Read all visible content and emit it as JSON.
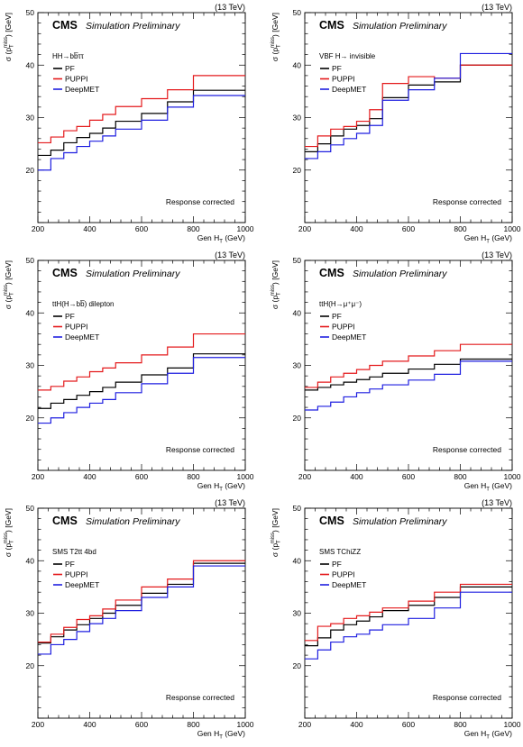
{
  "chart_data": [
    {
      "type": "line",
      "step": true,
      "energy_label": "(13 TeV)",
      "experiment": "CMS",
      "status": "Simulation Preliminary",
      "process": "HH→bb̅ττ",
      "annotation": "Response corrected",
      "xlabel": "Gen H",
      "xlabel_sub": "T",
      "xlabel_unit": "(GeV)",
      "ylabel": "σ (p",
      "ylabel_sub": "T",
      "ylabel_sup": "miss",
      "ylabel_unit": ") [GeV]",
      "xlim": [
        200,
        1000
      ],
      "ylim": [
        10,
        50
      ],
      "x_ticks": [
        200,
        400,
        600,
        800,
        1000
      ],
      "y_ticks": [
        20,
        30,
        40,
        50
      ],
      "grid": false,
      "legend_position": "top-left",
      "bin_edges": [
        200,
        250,
        300,
        350,
        400,
        450,
        500,
        600,
        700,
        800,
        1000
      ],
      "series": [
        {
          "name": "PF",
          "values": [
            22.8,
            23.8,
            25.2,
            26.2,
            27.0,
            28.0,
            29.3,
            30.8,
            33.0,
            35.2
          ]
        },
        {
          "name": "PUPPI",
          "values": [
            25.2,
            26.3,
            27.5,
            28.3,
            29.5,
            30.6,
            32.1,
            33.6,
            35.3,
            38.0
          ]
        },
        {
          "name": "DeepMET",
          "values": [
            20.0,
            22.2,
            23.3,
            24.5,
            25.5,
            26.5,
            27.8,
            29.5,
            32.0,
            34.2
          ]
        }
      ]
    },
    {
      "type": "line",
      "step": true,
      "energy_label": "(13 TeV)",
      "experiment": "CMS",
      "status": "Simulation Preliminary",
      "process": "VBF H→ invisible",
      "annotation": "Response corrected",
      "xlabel": "Gen H",
      "xlabel_sub": "T",
      "xlabel_unit": "(GeV)",
      "ylabel": "σ (p",
      "ylabel_sub": "T",
      "ylabel_sup": "miss",
      "ylabel_unit": ") [GeV]",
      "xlim": [
        200,
        1000
      ],
      "ylim": [
        10,
        50
      ],
      "x_ticks": [
        200,
        400,
        600,
        800,
        1000
      ],
      "y_ticks": [
        20,
        30,
        40,
        50
      ],
      "grid": false,
      "legend_position": "top-left",
      "bin_edges": [
        200,
        250,
        300,
        350,
        400,
        450,
        500,
        600,
        700,
        800,
        1000
      ],
      "series": [
        {
          "name": "PF",
          "values": [
            23.5,
            25.0,
            26.5,
            27.8,
            28.5,
            29.8,
            33.8,
            36.2,
            36.8,
            40.0
          ]
        },
        {
          "name": "PUPPI",
          "values": [
            24.5,
            26.5,
            27.8,
            28.3,
            29.3,
            31.5,
            36.5,
            37.8,
            37.5,
            40.0
          ]
        },
        {
          "name": "DeepMET",
          "values": [
            22.2,
            23.5,
            24.8,
            26.0,
            27.0,
            28.5,
            33.3,
            35.3,
            37.5,
            42.2
          ]
        }
      ]
    },
    {
      "type": "line",
      "step": true,
      "energy_label": "(13 TeV)",
      "experiment": "CMS",
      "status": "Simulation Preliminary",
      "process": "ttH(H→bb̅) dilepton",
      "annotation": "Response corrected",
      "xlabel": "Gen H",
      "xlabel_sub": "T",
      "xlabel_unit": "(GeV)",
      "ylabel": "σ (p",
      "ylabel_sub": "T",
      "ylabel_sup": "miss",
      "ylabel_unit": ") [GeV]",
      "xlim": [
        200,
        1000
      ],
      "ylim": [
        10,
        50
      ],
      "x_ticks": [
        200,
        400,
        600,
        800,
        1000
      ],
      "y_ticks": [
        20,
        30,
        40,
        50
      ],
      "grid": false,
      "legend_position": "top-left",
      "bin_edges": [
        200,
        250,
        300,
        350,
        400,
        450,
        500,
        600,
        700,
        800,
        1000
      ],
      "series": [
        {
          "name": "PF",
          "values": [
            21.8,
            22.8,
            23.5,
            24.3,
            25.0,
            25.8,
            26.8,
            28.2,
            29.5,
            32.2
          ]
        },
        {
          "name": "PUPPI",
          "values": [
            25.3,
            26.0,
            27.0,
            27.8,
            28.8,
            29.5,
            30.5,
            32.0,
            33.5,
            36.0
          ]
        },
        {
          "name": "DeepMET",
          "values": [
            19.0,
            20.0,
            21.0,
            22.0,
            22.8,
            23.5,
            24.8,
            26.5,
            28.5,
            31.5
          ]
        }
      ]
    },
    {
      "type": "line",
      "step": true,
      "energy_label": "(13 TeV)",
      "experiment": "CMS",
      "status": "Simulation Preliminary",
      "process": "ttH(H→μ⁺μ⁻)",
      "annotation": "Response corrected",
      "xlabel": "Gen H",
      "xlabel_sub": "T",
      "xlabel_unit": "(GeV)",
      "ylabel": "σ (p",
      "ylabel_sub": "T",
      "ylabel_sup": "miss",
      "ylabel_unit": ") [GeV]",
      "xlim": [
        200,
        1000
      ],
      "ylim": [
        10,
        50
      ],
      "x_ticks": [
        200,
        400,
        600,
        800,
        1000
      ],
      "y_ticks": [
        20,
        30,
        40,
        50
      ],
      "grid": false,
      "legend_position": "top-left",
      "bin_edges": [
        200,
        250,
        300,
        350,
        400,
        450,
        500,
        600,
        700,
        800,
        1000
      ],
      "series": [
        {
          "name": "PF",
          "values": [
            25.3,
            25.8,
            26.3,
            26.8,
            27.3,
            27.8,
            28.5,
            29.3,
            30.2,
            31.2
          ]
        },
        {
          "name": "PUPPI",
          "values": [
            25.8,
            26.8,
            27.8,
            28.5,
            29.2,
            30.0,
            30.8,
            31.8,
            32.8,
            34.0
          ]
        },
        {
          "name": "DeepMET",
          "values": [
            21.5,
            22.2,
            23.0,
            24.0,
            24.8,
            25.5,
            26.3,
            27.2,
            28.3,
            30.8
          ]
        }
      ]
    },
    {
      "type": "line",
      "step": true,
      "energy_label": "(13 TeV)",
      "experiment": "CMS",
      "status": "Simulation Preliminary",
      "process": "SMS T2tt 4bd",
      "annotation": "Response corrected",
      "xlabel": "Gen H",
      "xlabel_sub": "T",
      "xlabel_unit": "(GeV)",
      "ylabel": "σ (p",
      "ylabel_sub": "T",
      "ylabel_sup": "miss",
      "ylabel_unit": ") [GeV]",
      "xlim": [
        200,
        1000
      ],
      "ylim": [
        10,
        50
      ],
      "x_ticks": [
        200,
        400,
        600,
        800,
        1000
      ],
      "y_ticks": [
        20,
        30,
        40,
        50
      ],
      "grid": false,
      "legend_position": "top-left",
      "bin_edges": [
        200,
        250,
        300,
        350,
        400,
        450,
        500,
        600,
        700,
        800,
        1000
      ],
      "series": [
        {
          "name": "PF",
          "values": [
            24.3,
            25.5,
            26.8,
            27.8,
            29.0,
            30.0,
            31.5,
            33.8,
            35.5,
            39.5
          ]
        },
        {
          "name": "PUPPI",
          "values": [
            24.5,
            26.0,
            27.3,
            28.8,
            29.5,
            30.8,
            32.5,
            35.0,
            36.5,
            40.0
          ]
        },
        {
          "name": "DeepMET",
          "values": [
            22.2,
            24.0,
            25.0,
            26.5,
            28.0,
            29.0,
            30.5,
            33.0,
            35.0,
            39.0
          ]
        }
      ]
    },
    {
      "type": "line",
      "step": true,
      "energy_label": "(13 TeV)",
      "experiment": "CMS",
      "status": "Simulation Preliminary",
      "process": "SMS TChiZZ",
      "annotation": "Response corrected",
      "xlabel": "Gen H",
      "xlabel_sub": "T",
      "xlabel_unit": "(GeV)",
      "ylabel": "σ (p",
      "ylabel_sub": "T",
      "ylabel_sup": "miss",
      "ylabel_unit": ") [GeV]",
      "xlim": [
        200,
        1000
      ],
      "ylim": [
        10,
        50
      ],
      "x_ticks": [
        200,
        400,
        600,
        800,
        1000
      ],
      "y_ticks": [
        20,
        30,
        40,
        50
      ],
      "grid": false,
      "legend_position": "top-left",
      "bin_edges": [
        200,
        250,
        300,
        350,
        400,
        450,
        500,
        600,
        700,
        800,
        1000
      ],
      "series": [
        {
          "name": "PF",
          "values": [
            23.8,
            25.3,
            26.8,
            27.8,
            28.5,
            29.3,
            30.5,
            31.5,
            33.0,
            35.0
          ]
        },
        {
          "name": "PUPPI",
          "values": [
            24.8,
            27.5,
            28.0,
            29.0,
            29.5,
            30.2,
            31.0,
            32.3,
            34.0,
            35.5
          ]
        },
        {
          "name": "DeepMET",
          "values": [
            21.3,
            23.0,
            24.5,
            25.5,
            26.0,
            26.8,
            27.8,
            29.0,
            31.0,
            34.0
          ]
        }
      ]
    }
  ],
  "colors": {
    "PF": "#000000",
    "PUPPI": "#e41a1c",
    "DeepMET": "#1f1fe0",
    "axis": "#000000",
    "annotation": "#000000"
  }
}
